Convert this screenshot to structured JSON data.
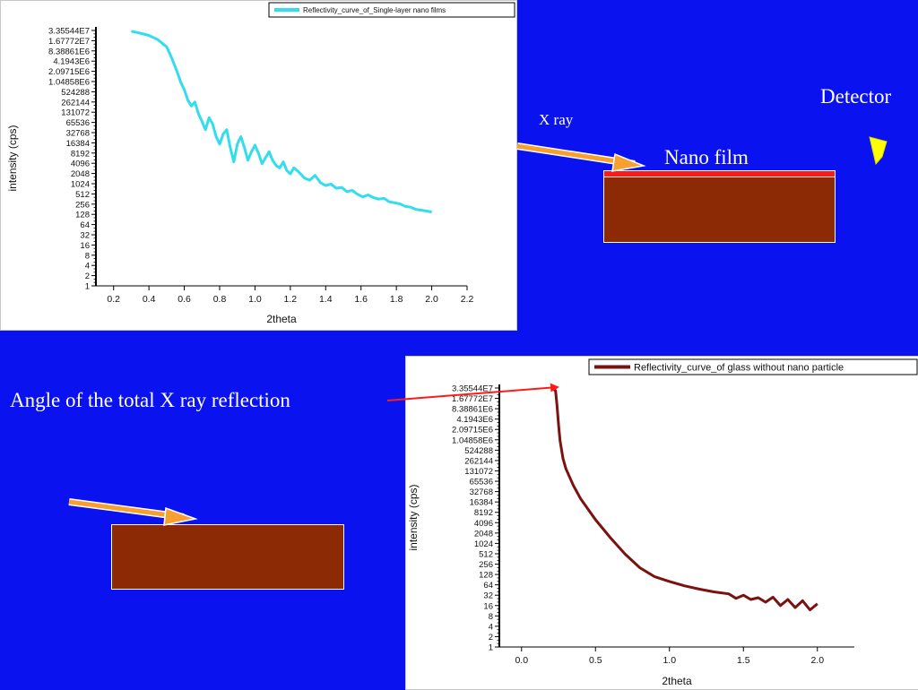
{
  "labels": {
    "detector": "Detector",
    "xray": "X ray",
    "nano_film": "Nano film",
    "angle": "Angle of the total X ray reflection"
  },
  "colors": {
    "background": "#0a12f0",
    "substrate": "#8b2a05",
    "film": "#ff1a1a",
    "beam_arrow": "#f7a030",
    "pointer_arrow": "#ff1a1a",
    "detector": "#ffff00"
  },
  "chart_data": [
    {
      "type": "line",
      "legend": "Reflectivity_curve_of_Single-layer nano films",
      "legend_position": "top-right",
      "xlabel": "2theta",
      "ylabel": "intensity (cps)",
      "log_scale_y": true,
      "xlim": [
        0.1,
        2.2
      ],
      "x_ticks": [
        "0.2",
        "0.4",
        "0.6",
        "0.8",
        "1.0",
        "1.2",
        "1.4",
        "1.6",
        "1.8",
        "2.0",
        "2.2"
      ],
      "y_ticks": [
        "3.35544E7",
        "1.67772E7",
        "8.38861E6",
        "4.1943E6",
        "2.09715E6",
        "1.04858E6",
        "524288",
        "262144",
        "131072",
        "65536",
        "32768",
        "16384",
        "8192",
        "4096",
        "2048",
        "1024",
        "512",
        "256",
        "128",
        "64",
        "32",
        "16",
        "8",
        "4",
        "2",
        "1"
      ],
      "color": "#33ddee",
      "series": [
        {
          "x": [
            0.3,
            0.35,
            0.4,
            0.45,
            0.5,
            0.53,
            0.56,
            0.58,
            0.6,
            0.62,
            0.64,
            0.66,
            0.68,
            0.7,
            0.72,
            0.74,
            0.76,
            0.78,
            0.8,
            0.82,
            0.84,
            0.86,
            0.88,
            0.9,
            0.92,
            0.94,
            0.96,
            0.98,
            1.0,
            1.02,
            1.04,
            1.06,
            1.08,
            1.1,
            1.12,
            1.14,
            1.16,
            1.18,
            1.2,
            1.22,
            1.25,
            1.28,
            1.31,
            1.34,
            1.37,
            1.4,
            1.43,
            1.46,
            1.49,
            1.52,
            1.55,
            1.58,
            1.61,
            1.64,
            1.67,
            1.7,
            1.73,
            1.76,
            1.79,
            1.82,
            1.85,
            1.88,
            1.91,
            1.94,
            1.97,
            2.0
          ],
          "y": [
            32000000,
            28000000,
            24000000,
            18000000,
            11000000,
            5000000,
            2000000,
            1000000,
            600000,
            300000,
            200000,
            260000,
            120000,
            70000,
            40000,
            90000,
            60000,
            25000,
            15000,
            30000,
            40000,
            12000,
            4500,
            15000,
            25000,
            12000,
            5000,
            9000,
            14000,
            8000,
            4000,
            6000,
            9000,
            5000,
            3500,
            3000,
            4500,
            2500,
            2000,
            3000,
            2200,
            1500,
            1300,
            1800,
            1100,
            900,
            1000,
            750,
            800,
            600,
            650,
            500,
            420,
            480,
            400,
            360,
            380,
            300,
            280,
            260,
            220,
            210,
            180,
            170,
            160,
            150
          ]
        }
      ]
    },
    {
      "type": "line",
      "legend": "Reflectivity_curve_of glass without nano particle",
      "legend_position": "top-right",
      "xlabel": "2theta",
      "ylabel": "intensity (cps)",
      "log_scale_y": true,
      "xlim": [
        -0.15,
        2.25
      ],
      "x_ticks": [
        "0.0",
        "0.5",
        "1.0",
        "1.5",
        "2.0"
      ],
      "y_ticks": [
        "3.35544E7",
        "1.67772E7",
        "8.38861E6",
        "4.1943E6",
        "2.09715E6",
        "1.04858E6",
        "524288",
        "262144",
        "131072",
        "65536",
        "32768",
        "16384",
        "8192",
        "4096",
        "2048",
        "1024",
        "512",
        "256",
        "128",
        "64",
        "32",
        "16",
        "8",
        "4",
        "2",
        "1"
      ],
      "color": "#7a1210",
      "series": [
        {
          "x": [
            0.2,
            0.21,
            0.22,
            0.23,
            0.24,
            0.25,
            0.26,
            0.28,
            0.3,
            0.35,
            0.4,
            0.5,
            0.6,
            0.7,
            0.8,
            0.9,
            1.0,
            1.1,
            1.2,
            1.3,
            1.4,
            1.45,
            1.5,
            1.55,
            1.6,
            1.65,
            1.7,
            1.75,
            1.8,
            1.85,
            1.9,
            1.95,
            2.0
          ],
          "y": [
            33554432,
            34000000,
            30000000,
            28000000,
            10000000,
            3000000,
            1000000,
            300000,
            150000,
            50000,
            20000,
            5000,
            1500,
            500,
            200,
            110,
            80,
            60,
            48,
            40,
            35,
            26,
            32,
            24,
            27,
            20,
            28,
            16,
            24,
            14,
            22,
            12,
            18
          ]
        }
      ]
    }
  ]
}
